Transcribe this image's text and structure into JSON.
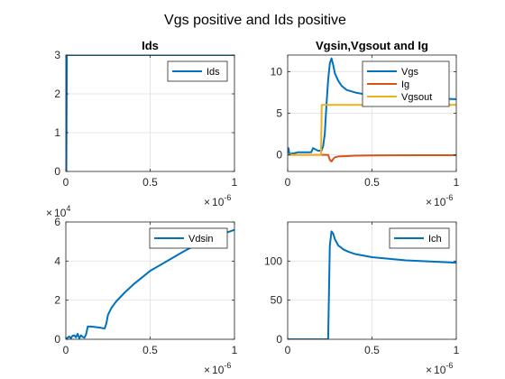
{
  "figure_title": "Vgs positive and Ids positive",
  "colors": {
    "blue": "#0072BD",
    "orange": "#D95319",
    "yellow": "#EDB120",
    "axis": "#262626",
    "grid": "#e6e6e6"
  },
  "chart_data": [
    {
      "id": "ids",
      "type": "line",
      "title": "Ids",
      "xlabel": "",
      "ylabel": "",
      "xlim": [
        0,
        1e-06
      ],
      "ylim": [
        0,
        3
      ],
      "xticks": [
        0,
        5e-07,
        1e-06
      ],
      "xtick_labels": [
        "0",
        "0.5",
        "1"
      ],
      "yticks": [
        0,
        1,
        2,
        3
      ],
      "ytick_labels": [
        "0",
        "1",
        "2",
        "3"
      ],
      "x_exponent": "10",
      "x_exponent_power": "-6",
      "y_exponent": "",
      "y_exponent_power": "",
      "grid": true,
      "legend": "top-right",
      "series": [
        {
          "name": "Ids",
          "color": "#0072BD",
          "x": [
            0,
            3e-09,
            6e-09,
            1e-06
          ],
          "y": [
            0,
            0,
            3,
            3
          ]
        }
      ]
    },
    {
      "id": "vg",
      "type": "line",
      "title": "Vgsin,Vgsout and Ig",
      "xlabel": "",
      "ylabel": "",
      "xlim": [
        0,
        1e-06
      ],
      "ylim": [
        -2,
        12
      ],
      "xticks": [
        0,
        5e-07,
        1e-06
      ],
      "xtick_labels": [
        "0",
        "0.5",
        "1"
      ],
      "yticks": [
        0,
        5,
        10
      ],
      "ytick_labels": [
        "0",
        "5",
        "10"
      ],
      "x_exponent": "10",
      "x_exponent_power": "-6",
      "y_exponent": "",
      "y_exponent_power": "",
      "grid": true,
      "legend": "top-right",
      "series": [
        {
          "name": "Vgs",
          "color": "#0072BD",
          "x": [
            0,
            5e-09,
            1e-08,
            4e-08,
            6e-08,
            8e-08,
            1e-07,
            1.2e-07,
            1.4e-07,
            1.5e-07,
            1.6e-07,
            1.8e-07,
            2e-07,
            2.1e-07,
            2.2e-07,
            2.3e-07,
            2.4e-07,
            2.5e-07,
            2.6e-07,
            2.7e-07,
            2.8e-07,
            3e-07,
            3.2e-07,
            3.5e-07,
            4e-07,
            4.5e-07,
            5e-07,
            5.5e-07,
            6e-07,
            7e-07,
            8e-07,
            9e-07,
            1e-06
          ],
          "y": [
            0.2,
            0.8,
            0.1,
            0.2,
            0.3,
            0.3,
            0.3,
            0.3,
            0.3,
            0.8,
            0.7,
            0.5,
            0.5,
            1.0,
            2.5,
            6.0,
            9.0,
            11.0,
            11.6,
            10.8,
            9.8,
            8.9,
            8.3,
            7.8,
            7.5,
            7.3,
            7.2,
            7.1,
            7.0,
            6.9,
            6.8,
            6.75,
            6.7
          ]
        },
        {
          "name": "Ig",
          "color": "#D95319",
          "x": [
            0,
            1e-07,
            2e-07,
            2.4e-07,
            2.5e-07,
            2.6e-07,
            2.7e-07,
            2.8e-07,
            3e-07,
            3.5e-07,
            4e-07,
            5e-07,
            6e-07,
            8e-07,
            1e-06
          ],
          "y": [
            0,
            0,
            0,
            0,
            -0.6,
            -0.8,
            -0.5,
            -0.3,
            -0.2,
            -0.15,
            -0.1,
            -0.08,
            -0.06,
            -0.05,
            -0.04
          ]
        },
        {
          "name": "Vgsout",
          "color": "#EDB120",
          "x": [
            0,
            1.97e-07,
            2e-07,
            2.02e-07,
            1e-06
          ],
          "y": [
            0,
            0,
            3,
            6,
            6
          ]
        }
      ]
    },
    {
      "id": "vds",
      "type": "line",
      "title": "",
      "xlabel": "",
      "ylabel": "",
      "xlim": [
        0,
        1e-06
      ],
      "ylim": [
        0,
        60000
      ],
      "xticks": [
        0,
        5e-07,
        1e-06
      ],
      "xtick_labels": [
        "0",
        "0.5",
        "1"
      ],
      "yticks": [
        0,
        20000,
        40000,
        60000
      ],
      "ytick_labels": [
        "0",
        "2",
        "4",
        "6"
      ],
      "x_exponent": "10",
      "x_exponent_power": "-6",
      "y_exponent": "10",
      "y_exponent_power": "4",
      "grid": true,
      "legend": "top-right",
      "series": [
        {
          "name": "Vdsin",
          "color": "#0072BD",
          "x": [
            0,
            2e-08,
            3e-08,
            4e-08,
            5e-08,
            6e-08,
            7e-08,
            8e-08,
            9e-08,
            1e-07,
            1.1e-07,
            1.2e-07,
            1.3e-07,
            1.5e-07,
            2e-07,
            2.3e-07,
            2.4e-07,
            2.5e-07,
            2.7e-07,
            3e-07,
            3.5e-07,
            4e-07,
            5e-07,
            6e-07,
            7e-07,
            8e-07,
            9e-07,
            1e-06
          ],
          "y": [
            0,
            1500,
            500,
            1800,
            2000,
            1000,
            2800,
            500,
            2000,
            1200,
            800,
            2500,
            6500,
            6500,
            6000,
            5500,
            8000,
            12500,
            16000,
            19500,
            24000,
            28000,
            35000,
            40000,
            45000,
            49500,
            53000,
            56000
          ]
        }
      ]
    },
    {
      "id": "ich",
      "type": "line",
      "title": "",
      "xlabel": "",
      "ylabel": "",
      "xlim": [
        0,
        1e-06
      ],
      "ylim": [
        0,
        150
      ],
      "xticks": [
        0,
        5e-07,
        1e-06
      ],
      "xtick_labels": [
        "0",
        "0.5",
        "1"
      ],
      "yticks": [
        0,
        50,
        100
      ],
      "ytick_labels": [
        "0",
        "50",
        "100"
      ],
      "x_exponent": "10",
      "x_exponent_power": "-6",
      "y_exponent": "",
      "y_exponent_power": "",
      "grid": true,
      "legend": "top-right",
      "series": [
        {
          "name": "Ich",
          "color": "#0072BD",
          "x": [
            0,
            2.4e-07,
            2.45e-07,
            2.5e-07,
            2.6e-07,
            2.7e-07,
            2.8e-07,
            3e-07,
            3.3e-07,
            3.6e-07,
            4e-07,
            4.5e-07,
            5e-07,
            6e-07,
            7e-07,
            8e-07,
            9e-07,
            1e-06
          ],
          "y": [
            0,
            0,
            60,
            120,
            138,
            135,
            128,
            120,
            115,
            112,
            109,
            107,
            105,
            103,
            101,
            100,
            99,
            98
          ]
        }
      ]
    }
  ]
}
